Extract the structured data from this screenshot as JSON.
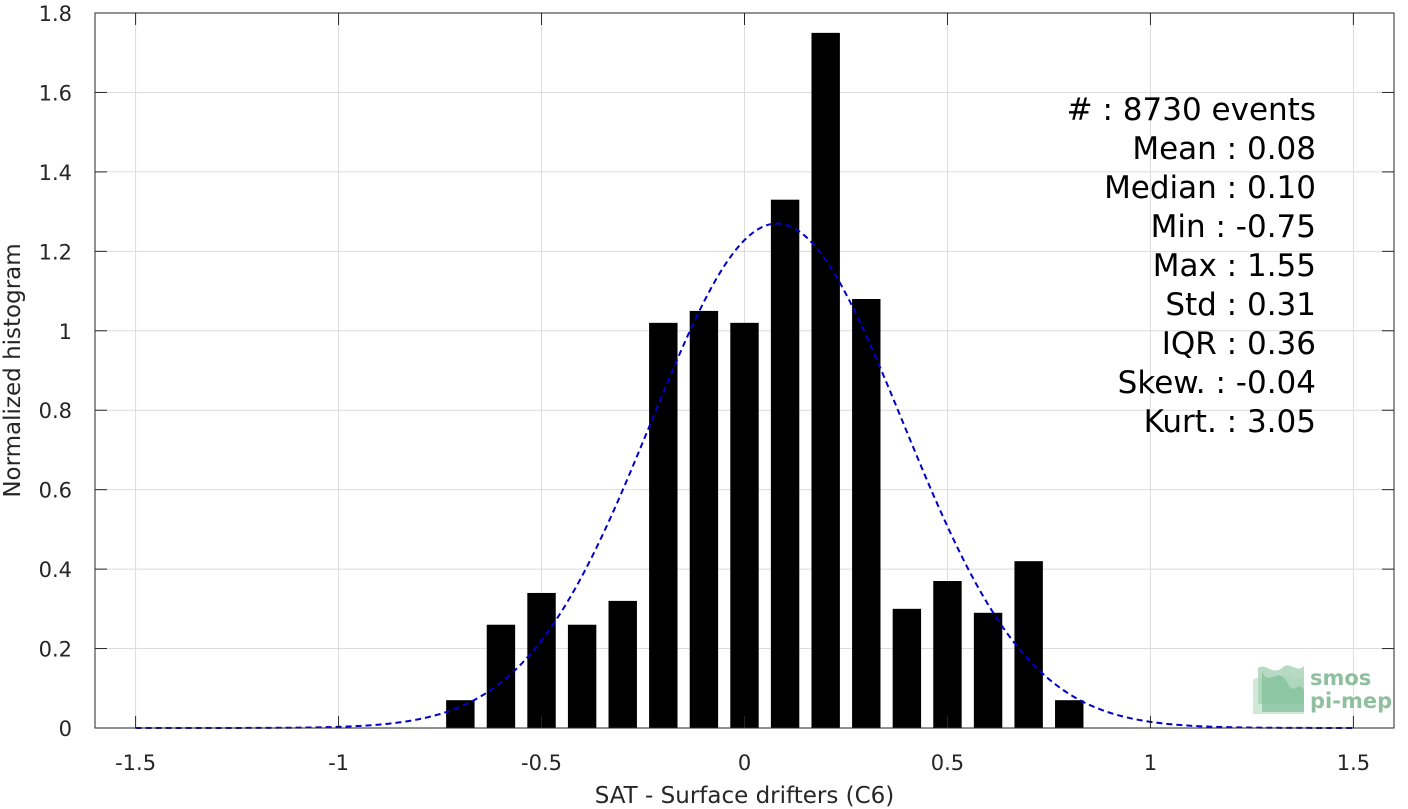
{
  "chart_data": {
    "type": "bar",
    "xlabel": "SAT - Surface drifters (C6)",
    "ylabel": "Normalized histogram",
    "xlim": [
      -1.6,
      1.6
    ],
    "ylim": [
      0,
      1.8
    ],
    "xticks": [
      -1.5,
      -1,
      -0.5,
      0,
      0.5,
      1,
      1.5
    ],
    "xtick_labels": [
      "-1.5",
      "-1",
      "-0.5",
      "0",
      "0.5",
      "1",
      "1.5"
    ],
    "yticks": [
      0,
      0.2,
      0.4,
      0.6,
      0.8,
      1,
      1.2,
      1.4,
      1.6,
      1.8
    ],
    "ytick_labels": [
      "0",
      "0.2",
      "0.4",
      "0.6",
      "0.8",
      "1",
      "1.2",
      "1.4",
      "1.6",
      "1.8"
    ],
    "grid": true,
    "bar_color": "#000000",
    "bar_width": 0.07,
    "bins": [
      -0.7,
      -0.6,
      -0.5,
      -0.4,
      -0.3,
      -0.2,
      -0.1,
      0.0,
      0.1,
      0.2,
      0.3,
      0.4,
      0.5,
      0.6,
      0.7,
      0.8
    ],
    "values": [
      0.07,
      0.26,
      0.34,
      0.26,
      0.32,
      1.02,
      1.05,
      1.02,
      1.33,
      1.75,
      1.08,
      0.3,
      0.37,
      0.29,
      0.42,
      0.07
    ],
    "fit_curve": {
      "style": "dashed",
      "color": "#0000cc",
      "mean": 0.08,
      "std": 0.31,
      "peak": 1.27
    },
    "stats_lines": [
      "#  : 8730 events",
      "Mean : 0.08",
      "Median : 0.10",
      "Min : -0.75",
      "Max : 1.55",
      "Std : 0.31",
      "IQR : 0.36",
      "Skew. : -0.04",
      "Kurt. : 3.05"
    ]
  },
  "logo": {
    "line1": "smos",
    "line2": "pi-mep"
  }
}
